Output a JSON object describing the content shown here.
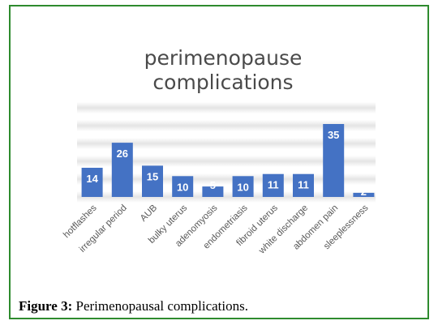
{
  "chart_data": {
    "type": "bar",
    "title_lines": [
      "perimenopause",
      "complications"
    ],
    "categories": [
      "hotflashes",
      "irregular period",
      "AUB",
      "bulky uterus",
      "adenomyosis",
      "endometriasis",
      "fibroid uterus",
      "white discharge",
      "abdomen pain",
      "sleeplessness"
    ],
    "values": [
      14,
      26,
      15,
      10,
      5,
      10,
      11,
      11,
      35,
      2
    ],
    "ylim": [
      0,
      35
    ],
    "bar_color": "#4472c4",
    "label_color": "#ffffff",
    "xlabel": "",
    "ylabel": ""
  },
  "caption": {
    "label": "Figure 3:",
    "text": " Perimenopausal complications."
  }
}
